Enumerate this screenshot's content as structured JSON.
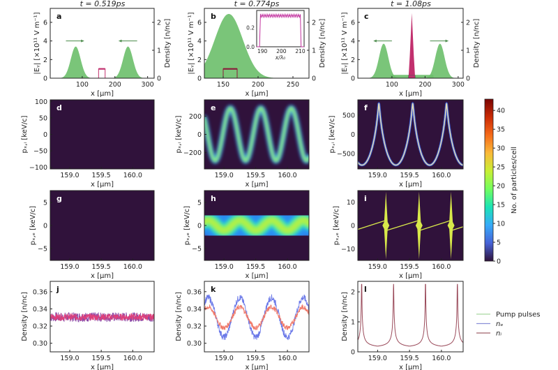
{
  "titles": [
    "t = 0.519ps",
    "t = 0.774ps",
    "t = 1.08ps"
  ],
  "colors": {
    "heat_bg": "#30123b",
    "pump": "#6cbf6a",
    "ne": "#6a78e8",
    "ni": "#f07a6a",
    "target": "#c2306e",
    "frame": "#222222"
  },
  "legend": [
    {
      "label": "Pump pulses",
      "color": "#a8d8a0"
    },
    {
      "label": "nₑ",
      "color": "#8a90d8"
    },
    {
      "label": "nᵢ",
      "color": "#a0606a"
    }
  ],
  "colorbar": {
    "label": "No. of particles/cell",
    "range": [
      0,
      43
    ],
    "ticks": [
      "0",
      "5",
      "10",
      "15",
      "20",
      "25",
      "30",
      "35",
      "40"
    ],
    "colormap": [
      "#30123b",
      "#4662d7",
      "#36aaf9",
      "#1ae4b6",
      "#72fe5e",
      "#c8ef34",
      "#faba39",
      "#f66b19",
      "#ca2a04",
      "#7a0403"
    ]
  },
  "chart_data": [
    {
      "id": "a",
      "letter": "a",
      "type": "area",
      "xlim": [
        2,
        320
      ],
      "ylim": [
        0,
        7.5
      ],
      "xticks": [
        "100",
        "200",
        "300"
      ],
      "yticks": [
        "0",
        "2",
        "4",
        "6"
      ],
      "xlabel": "x [μm]",
      "ylabel": "|Eᵧ| [×10¹¹ V m⁻¹]",
      "y2lim": [
        0,
        2.5
      ],
      "y2ticks": [
        "0",
        "1",
        "2"
      ],
      "y2label": "Density [n/nc]",
      "series": [
        {
          "kind": "gaussian",
          "center": 80,
          "amp": 3.4,
          "sigma": 15,
          "color": "#6cbf6a"
        },
        {
          "kind": "gaussian",
          "center": 240,
          "amp": 3.4,
          "sigma": 15,
          "color": "#6cbf6a"
        },
        {
          "kind": "box",
          "from": 150,
          "to": 170,
          "height": 1.0,
          "color": "#c2306e"
        },
        {
          "kind": "arrow",
          "from": 50,
          "to": 105,
          "y": 4,
          "color": "#4a8a4a"
        },
        {
          "kind": "arrow",
          "from": 268,
          "to": 212,
          "y": 4,
          "color": "#4a8a4a"
        }
      ]
    },
    {
      "id": "b",
      "letter": "b",
      "type": "area",
      "xlim": [
        123,
        273
      ],
      "ylim": [
        0,
        7.5
      ],
      "xticks": [
        "150",
        "200",
        "250"
      ],
      "yticks": [
        "0",
        "2",
        "4",
        "6"
      ],
      "xlabel": "x [μm]",
      "ylabel": "|Eᵧ| [×10¹¹ V m⁻¹]",
      "y2lim": [
        0,
        2.5
      ],
      "y2ticks": [
        "0",
        "1",
        "2"
      ],
      "y2label": "Density [n/nc]",
      "series": [
        {
          "kind": "gaussian",
          "center": 158,
          "amp": 6.9,
          "sigma": 20,
          "color": "#6cbf6a"
        },
        {
          "kind": "box",
          "from": 150,
          "to": 170,
          "height": 1.0,
          "color": "#8a1a3a"
        }
      ],
      "inset": {
        "xlim": [
          187,
          212
        ],
        "ylim": [
          0,
          0.38
        ],
        "xticks": [
          "190",
          "200",
          "210"
        ],
        "yticks": [
          "0.0",
          "0.2"
        ],
        "xlabel": "x/λ₀",
        "series": {
          "kind": "zigzag",
          "from": 189,
          "to": 210,
          "low": 0.31,
          "high": 0.34,
          "teeth": 22,
          "color": "#c2309e"
        }
      }
    },
    {
      "id": "c",
      "letter": "c",
      "type": "area",
      "xlim": [
        -3,
        315
      ],
      "ylim": [
        0,
        7.5
      ],
      "xticks": [
        "100",
        "200",
        "300"
      ],
      "yticks": [
        "0",
        "2",
        "4",
        "6"
      ],
      "xlabel": "x [μm]",
      "ylabel": "|Eᵧ| [×10¹¹ V m⁻¹]",
      "y2lim": [
        0,
        2.5
      ],
      "y2ticks": [
        "0",
        "1",
        "2"
      ],
      "y2label": "Density [n/nc]",
      "series": [
        {
          "kind": "plateau",
          "from": 95,
          "to": 225,
          "level": 0.35,
          "color": "#6cbf6a"
        },
        {
          "kind": "gaussian",
          "center": 75,
          "amp": 3.7,
          "sigma": 14,
          "color": "#6cbf6a"
        },
        {
          "kind": "gaussian",
          "center": 245,
          "amp": 3.7,
          "sigma": 14,
          "color": "#6cbf6a"
        },
        {
          "kind": "spike",
          "center": 160,
          "half_width": 10,
          "amp": 7.0,
          "color": "#c2306e"
        },
        {
          "kind": "arrow",
          "from": 100,
          "to": 45,
          "y": 4,
          "color": "#4a8a4a"
        },
        {
          "kind": "arrow",
          "from": 215,
          "to": 270,
          "y": 4,
          "color": "#4a8a4a"
        }
      ]
    },
    {
      "id": "d",
      "letter": "d",
      "type": "heatmap",
      "xlim": [
        158.69,
        160.34
      ],
      "ylim": [
        -105,
        105
      ],
      "xticks": [
        "159.0",
        "159.5",
        "160.0"
      ],
      "yticks": [
        "−100",
        "−50",
        "0",
        "50",
        "100"
      ],
      "xlabel": "x [μm]",
      "ylabel": "pₓ,ᵢ [keV/c]",
      "series": [
        {
          "kind": "band",
          "center": 0,
          "amp": 0,
          "period": 0.5,
          "peak_x": 159,
          "core": 16,
          "halo": 45
        }
      ]
    },
    {
      "id": "e",
      "letter": "e",
      "type": "heatmap",
      "xlim": [
        158.69,
        160.34
      ],
      "ylim": [
        -380,
        380
      ],
      "xticks": [
        "159.0",
        "159.5",
        "160.0"
      ],
      "yticks": [
        "−200",
        "0",
        "200"
      ],
      "xlabel": "x [μm]",
      "ylabel": "pₓ,ᵢ [keV/c]",
      "series": [
        {
          "kind": "band",
          "center": 0,
          "amp": 290,
          "period": 0.48,
          "peak_x": 159.1,
          "core": 14,
          "halo": 34
        }
      ]
    },
    {
      "id": "f",
      "letter": "f",
      "type": "heatmap",
      "xlim": [
        158.69,
        160.34
      ],
      "ylim": [
        -900,
        900
      ],
      "xticks": [
        "159.0",
        "159.5",
        "160.0"
      ],
      "yticks": [
        "−500",
        "0",
        "500"
      ],
      "xlabel": "x [μm]",
      "ylabel": "pₓ,ᵢ [keV/c]",
      "series": [
        {
          "kind": "curve",
          "amp": 800,
          "period": 0.53,
          "peak_x": 159.02,
          "skew": 0.85
        }
      ]
    },
    {
      "id": "g",
      "letter": "g",
      "type": "heatmap",
      "xlim": [
        158.69,
        160.34
      ],
      "ylim": [
        -7.6,
        7.6
      ],
      "xticks": [
        "159.0",
        "159.5",
        "160.0"
      ],
      "yticks": [
        "−5",
        "0",
        "5"
      ],
      "xlabel": "x [μm]",
      "ylabel": "pₓ,ₑ [keV/c]",
      "series": [
        {
          "kind": "band",
          "center": 0,
          "amp": 0,
          "period": 0.5,
          "peak_x": 159,
          "core": 1.3,
          "halo": 3.6
        }
      ]
    },
    {
      "id": "h",
      "letter": "h",
      "type": "heatmap",
      "xlim": [
        158.69,
        160.34
      ],
      "ylim": [
        -7.6,
        7.6
      ],
      "xticks": [
        "159.0",
        "159.5",
        "160.0"
      ],
      "yticks": [
        "−5",
        "0",
        "5"
      ],
      "xlabel": "x [μm]",
      "ylabel": "pₓ,ₑ [keV/c]",
      "series": [
        {
          "kind": "band",
          "center": 0,
          "amp": 1.1,
          "period": 0.5,
          "peak_x": 159.25,
          "core": 1.2,
          "halo": 3.8
        }
      ]
    },
    {
      "id": "i",
      "letter": "i",
      "type": "heatmap",
      "xlim": [
        158.69,
        160.34
      ],
      "ylim": [
        -15,
        15
      ],
      "xticks": [
        "159.0",
        "159.5",
        "160.0"
      ],
      "yticks": [
        "−10",
        "0",
        "10"
      ],
      "xlabel": "x [μm]",
      "ylabel": "pₓ,ₑ [keV/c]",
      "series": [
        {
          "kind": "band",
          "center": 0,
          "amp": 0,
          "period": 0.5,
          "peak_x": 159,
          "core": 1.6,
          "halo": 4.2
        },
        {
          "kind": "spikes",
          "positions": [
            158.63,
            159.13,
            159.65,
            160.15,
            160.65
          ],
          "height": 14.5,
          "ramp": 2.2,
          "color": "#d8e84a"
        }
      ]
    },
    {
      "id": "j",
      "letter": "j",
      "type": "line",
      "xlim": [
        158.69,
        160.34
      ],
      "ylim": [
        0.29,
        0.372
      ],
      "xticks": [
        "159.0",
        "159.5",
        "160.0"
      ],
      "yticks": [
        "0.30",
        "0.32",
        "0.34",
        "0.36"
      ],
      "xlabel": "x [μm]",
      "ylabel": "Density [n/nc]",
      "series": [
        {
          "kind": "noisy_wave",
          "name": "nₑ",
          "mean": 0.3305,
          "amp": 0,
          "period": 0.5,
          "peak_x": 159.25,
          "noise": 0.0055,
          "color": "#8a4aa8"
        },
        {
          "kind": "noisy_wave",
          "name": "nᵢ",
          "mean": 0.3305,
          "amp": 0,
          "period": 0.5,
          "peak_x": 159.25,
          "noise": 0.004,
          "color": "#e0407a"
        }
      ]
    },
    {
      "id": "k",
      "letter": "k",
      "type": "line",
      "xlim": [
        158.69,
        160.34
      ],
      "ylim": [
        0.29,
        0.372
      ],
      "xticks": [
        "159.0",
        "159.5",
        "160.0"
      ],
      "yticks": [
        "0.30",
        "0.32",
        "0.34",
        "0.36"
      ],
      "xlabel": "x [μm]",
      "ylabel": "Density [n/nc]",
      "series": [
        {
          "kind": "noisy_wave",
          "name": "nₑ",
          "mean": 0.33,
          "amp": 0.023,
          "period": 0.5,
          "peak_x": 159.25,
          "noise": 0.004,
          "color": "#6a78e8"
        },
        {
          "kind": "noisy_wave",
          "name": "nᵢ",
          "mean": 0.33,
          "amp": 0.012,
          "period": 0.5,
          "peak_x": 159.25,
          "noise": 0.003,
          "color": "#f07a6a"
        }
      ]
    },
    {
      "id": "l",
      "letter": "l",
      "type": "line",
      "xlim": [
        158.69,
        160.34
      ],
      "ylim": [
        0,
        2.35
      ],
      "xticks": [
        "159.0",
        "159.5",
        "160.0"
      ],
      "yticks": [
        "0",
        "1",
        "2"
      ],
      "xlabel": "x [μm]",
      "ylabel": "Density [n/nc]",
      "series": [
        {
          "kind": "cusp",
          "base": 0.12,
          "strength": 0.018,
          "cap": 2.25,
          "period": 0.5,
          "peak_x": 159.25,
          "color": "#9a4a5a"
        }
      ]
    }
  ]
}
